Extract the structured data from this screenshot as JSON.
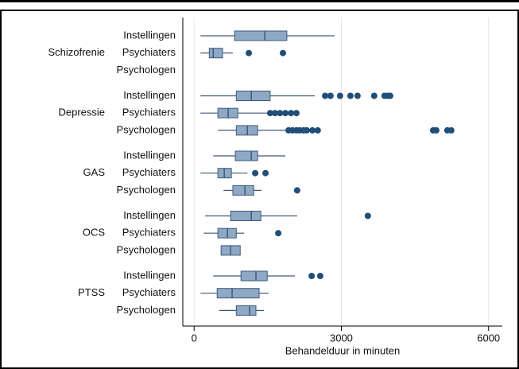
{
  "chart_data": {
    "type": "boxplot",
    "x_label": "Behandelduur in minuten",
    "xlim": [
      -230,
      6280
    ],
    "xticks": [
      0,
      3000,
      6000
    ],
    "grid": true,
    "box_color": "#8fa8c4",
    "line_color": "#3c5a7c",
    "outlier_color": "#1f4e79",
    "groups": [
      {
        "name": "Schizofrenie",
        "boxes": [
          {
            "label": "Instellingen",
            "whisker_low": 130,
            "q1": 825,
            "median": 1440,
            "q3": 1890,
            "whisker_high": 2860,
            "outliers": []
          },
          {
            "label": "Psychiaters",
            "whisker_low": 130,
            "q1": 310,
            "median": 390,
            "q3": 580,
            "whisker_high": 790,
            "outliers": [
              1115,
              1810
            ]
          },
          {
            "label": "Psychologen",
            "whisker_low": null,
            "q1": null,
            "median": null,
            "q3": null,
            "whisker_high": null,
            "outliers": []
          }
        ]
      },
      {
        "name": "Depressie",
        "boxes": [
          {
            "label": "Instellingen",
            "whisker_low": 130,
            "q1": 860,
            "median": 1165,
            "q3": 1550,
            "whisker_high": 2460,
            "outliers": [
              2670,
              2780,
              2975,
              3185,
              3330,
              3670,
              3880,
              3945,
              3995
            ]
          },
          {
            "label": "Psychiaters",
            "whisker_low": 130,
            "q1": 485,
            "median": 695,
            "q3": 890,
            "whisker_high": 1490,
            "outliers": [
              1550,
              1650,
              1750,
              1860,
              1975,
              2085
            ]
          },
          {
            "label": "Psychologen",
            "whisker_low": 485,
            "q1": 860,
            "median": 1085,
            "q3": 1295,
            "whisker_high": 1890,
            "outliers": [
              1925,
              2005,
              2085,
              2150,
              2230,
              2295,
              2410,
              2520,
              4870,
              4935,
              5160,
              5240
            ]
          }
        ]
      },
      {
        "name": "GAS",
        "boxes": [
          {
            "label": "Instellingen",
            "whisker_low": 390,
            "q1": 840,
            "median": 1165,
            "q3": 1295,
            "whisker_high": 1860,
            "outliers": []
          },
          {
            "label": "Psychiaters",
            "whisker_low": 130,
            "q1": 485,
            "median": 615,
            "q3": 760,
            "whisker_high": 1085,
            "outliers": [
              1245,
              1455
            ]
          },
          {
            "label": "Psychologen",
            "whisker_low": 600,
            "q1": 790,
            "median": 1035,
            "q3": 1215,
            "whisker_high": 1375,
            "outliers": [
              2100
            ]
          }
        ]
      },
      {
        "name": "OCS",
        "boxes": [
          {
            "label": "Instellingen",
            "whisker_low": 225,
            "q1": 745,
            "median": 1165,
            "q3": 1360,
            "whisker_high": 2100,
            "outliers": [
              3540
            ]
          },
          {
            "label": "Psychiaters",
            "whisker_low": 195,
            "q1": 485,
            "median": 680,
            "q3": 860,
            "whisker_high": 1020,
            "outliers": [
              1715
            ]
          },
          {
            "label": "Psychologen",
            "whisker_low": 550,
            "q1": 550,
            "median": 745,
            "q3": 940,
            "whisker_high": 940,
            "outliers": []
          }
        ]
      },
      {
        "name": "PTSS",
        "boxes": [
          {
            "label": "Instellingen",
            "whisker_low": 390,
            "q1": 955,
            "median": 1260,
            "q3": 1490,
            "whisker_high": 2055,
            "outliers": [
              2395,
              2570
            ]
          },
          {
            "label": "Psychiaters",
            "whisker_low": 130,
            "q1": 470,
            "median": 775,
            "q3": 1325,
            "whisker_high": 1520,
            "outliers": []
          },
          {
            "label": "Psychologen",
            "whisker_low": 515,
            "q1": 860,
            "median": 1130,
            "q3": 1260,
            "whisker_high": 1425,
            "outliers": []
          }
        ]
      }
    ]
  }
}
